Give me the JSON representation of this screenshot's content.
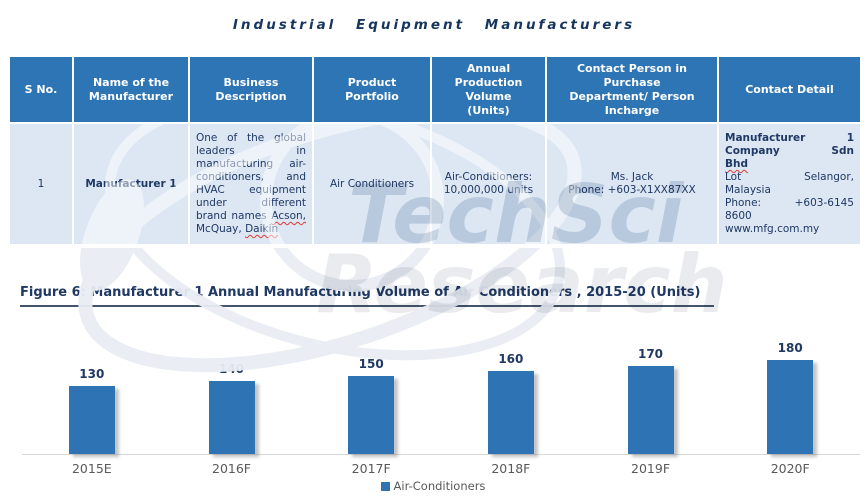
{
  "title": "Industrial Equipment Manufacturers",
  "watermark": {
    "line1": "TechSci",
    "line2": "Research"
  },
  "colors": {
    "header_bg": "#2E75B6",
    "row_bg": "#DCE7F3",
    "navy": "#1F3864",
    "title": "#17365D",
    "bar": "#2E74B5",
    "axis_line": "#D8D8D8",
    "label_gray": "#595959"
  },
  "table": {
    "headers": [
      "S No.",
      "Name of the Manufacturer",
      "Business Description",
      "Product Portfolio",
      "Annual Production Volume (Units)",
      "Contact Person in Purchase Department/ Person Incharge",
      "Contact Detail"
    ],
    "row": {
      "s_no": "1",
      "name": "Manufacturer 1",
      "description_before": "One of the global leaders in manufacturing air-conditioners, and HVAC equipment under different brand names ",
      "description_wavy1": "Acson,",
      "description_mid": " McQuay, ",
      "description_wavy2": "Daikin",
      "product_portfolio": "Air Conditioners",
      "annual_production": "Air-Conditioners:\n10,000,000 units",
      "contact_person": "Ms. Jack\nPhone: +603-X1XX87XX",
      "company_name": "Manufacturer 1\nCompany Sdn\n",
      "company_name_wavy": "Bhd",
      "contact_address": "Lot Selangor,\nMalaysia\nPhone: +603-6145\n8600\nwww.mfg.com.my"
    }
  },
  "figure": {
    "caption": "Figure 6: Manufacturer 1 Annual Manufacturing Volume of Air Conditioners , 2015-20 (Units)"
  },
  "chart_data": {
    "type": "bar",
    "title": "Manufacturer 1 Annual Manufacturing Volume of Air Conditioners, 2015-20 (Units)",
    "categories": [
      "2015E",
      "2016F",
      "2017F",
      "2018F",
      "2019F",
      "2020F"
    ],
    "series": [
      {
        "name": "Air-Conditioners",
        "values": [
          130,
          140,
          150,
          160,
          170,
          180
        ]
      }
    ],
    "xlabel": "",
    "ylabel": "",
    "ylim": [
      0,
      200
    ],
    "grid": false,
    "legend_position": "bottom",
    "data_labels": true,
    "bar_color": "#2E74B5",
    "label_color": "#1F3864"
  }
}
